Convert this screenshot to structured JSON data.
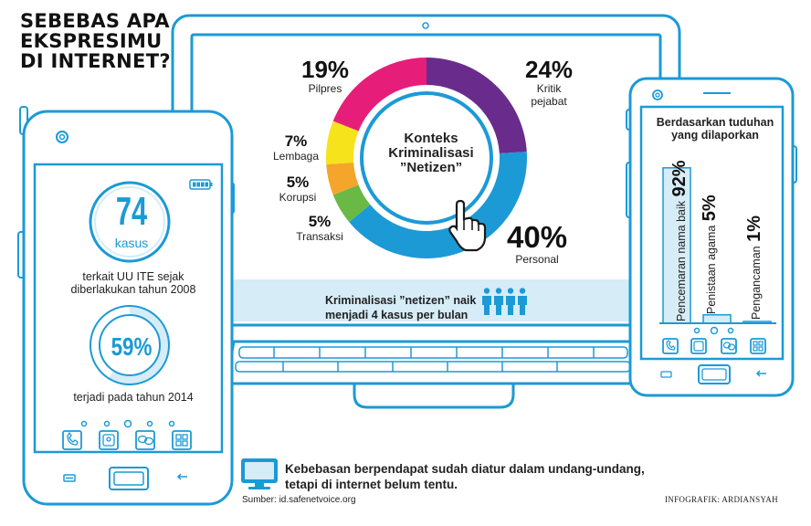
{
  "title_lines": [
    "SEBEBAS APA",
    "EKSPRESIMU",
    "DI INTERNET?"
  ],
  "colors": {
    "outline": "#1b9ad6",
    "light_blue": "#d6ecf7",
    "personal": "#1b9ad6",
    "kritik": "#6a2c8c",
    "pilpres": "#e61e7a",
    "lembaga": "#f7e31b",
    "korupsi": "#f5a52b",
    "transaksi": "#6ab945"
  },
  "chart_data": [
    {
      "type": "pie",
      "title": "Konteks Kriminalisasi \"Netizen\"",
      "title_lines": [
        "Konteks",
        "Kriminalisasi",
        "”Netizen”"
      ],
      "slices": [
        {
          "label": "Kritik pejabat",
          "label_lines": [
            "Kritik",
            "pejabat"
          ],
          "pct": "24%",
          "value": 24,
          "color": "#6a2c8c"
        },
        {
          "label": "Personal",
          "label_lines": [
            "Personal"
          ],
          "pct": "40%",
          "value": 40,
          "color": "#1b9ad6"
        },
        {
          "label": "Transaksi",
          "label_lines": [
            "Transaksi"
          ],
          "pct": "5%",
          "value": 5,
          "color": "#6ab945"
        },
        {
          "label": "Korupsi",
          "label_lines": [
            "Korupsi"
          ],
          "pct": "5%",
          "value": 5,
          "color": "#f5a52b"
        },
        {
          "label": "Lembaga",
          "label_lines": [
            "Lembaga"
          ],
          "pct": "7%",
          "value": 7,
          "color": "#f7e31b"
        },
        {
          "label": "Pilpres",
          "label_lines": [
            "Pilpres"
          ],
          "pct": "19%",
          "value": 19,
          "color": "#e61e7a"
        }
      ]
    },
    {
      "type": "bar",
      "title": "Berdasarkan tuduhan yang dilaporkan",
      "title_lines": [
        "Berdasarkan tuduhan",
        "yang dilaporkan"
      ],
      "categories": [
        "Pencemaran nama baik",
        "Penistaan agama",
        "Pengancaman"
      ],
      "values": [
        92,
        5,
        1
      ],
      "labels": [
        "92%",
        "5%",
        "1%"
      ],
      "ylim": [
        0,
        100
      ]
    }
  ],
  "left_phone": {
    "stat_number": "74",
    "stat_unit": "kasus",
    "stat_desc_lines": [
      "terkait UU ITE sejak",
      "diberlakukan tahun 2008"
    ],
    "percent_label": "59%",
    "percent_value": 59,
    "percent_desc": "terjadi pada tahun 2014"
  },
  "banner_lines": [
    "Kriminalisasi ”netizen” naik",
    "menjadi 4 kasus per bulan"
  ],
  "footer_lines": [
    "Kebebasan berpendapat sudah diatur dalam undang-undang,",
    "tetapi di internet belum tentu."
  ],
  "source": "Sumber: id.safenetvoice.org",
  "credit": "INFOGRAFIK: ARDIANSYAH",
  "icons": [
    "battery-icon",
    "phone-icon",
    "contact-icon",
    "chat-icon",
    "grid-icon",
    "menu-icon",
    "back-icon",
    "hand-cursor-icon",
    "people-icon",
    "monitor-icon"
  ]
}
